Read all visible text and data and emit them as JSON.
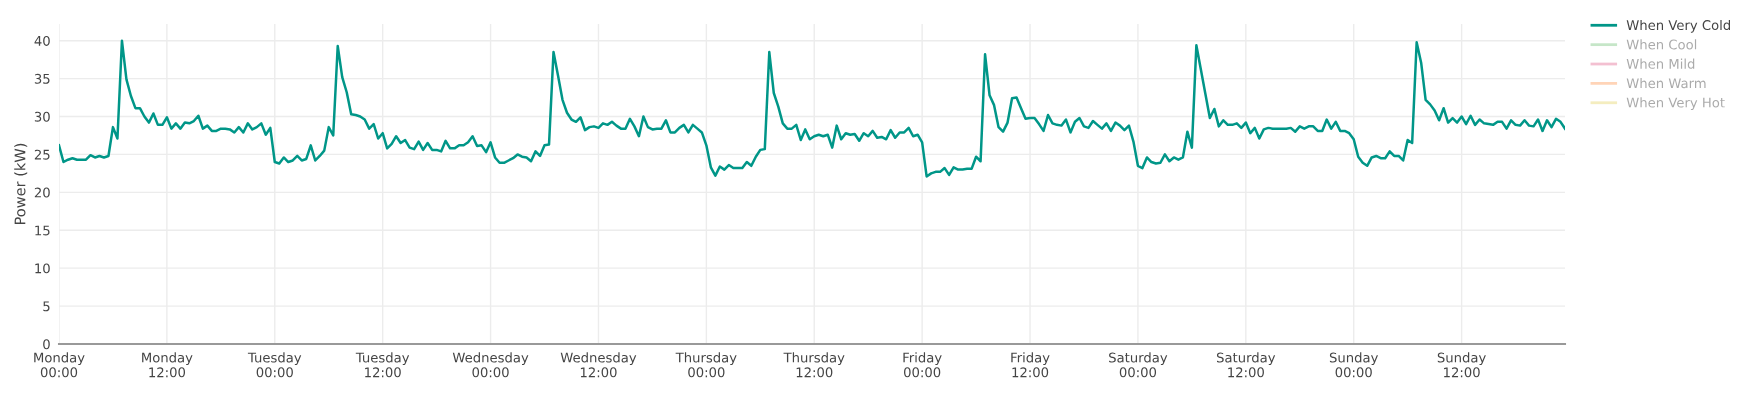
{
  "chart_data": {
    "type": "line",
    "ylabel": "Power (kW)",
    "ylim": [
      0,
      42.2
    ],
    "yticks": [
      0,
      5,
      10,
      15,
      20,
      25,
      30,
      35,
      40
    ],
    "categories": [
      "Monday\n00:00",
      null,
      null,
      null,
      null,
      null,
      null,
      null,
      null,
      null,
      null,
      null,
      null,
      null,
      null,
      null,
      null,
      null,
      null,
      null,
      null,
      null,
      null,
      null,
      "Monday\n12:00",
      null,
      null,
      null,
      null,
      null,
      null,
      null,
      null,
      null,
      null,
      null,
      null,
      null,
      null,
      null,
      null,
      null,
      null,
      null,
      null,
      null,
      null,
      null,
      "Tuesday\n00:00",
      null,
      null,
      null,
      null,
      null,
      null,
      null,
      null,
      null,
      null,
      null,
      null,
      null,
      null,
      null,
      null,
      null,
      null,
      null,
      null,
      null,
      null,
      null,
      "Tuesday\n12:00",
      null,
      null,
      null,
      null,
      null,
      null,
      null,
      null,
      null,
      null,
      null,
      null,
      null,
      null,
      null,
      null,
      null,
      null,
      null,
      null,
      null,
      null,
      null,
      "Wednesday\n00:00",
      null,
      null,
      null,
      null,
      null,
      null,
      null,
      null,
      null,
      null,
      null,
      null,
      null,
      null,
      null,
      null,
      null,
      null,
      null,
      null,
      null,
      null,
      null,
      "Wednesday\n12:00",
      null,
      null,
      null,
      null,
      null,
      null,
      null,
      null,
      null,
      null,
      null,
      null,
      null,
      null,
      null,
      null,
      null,
      null,
      null,
      null,
      null,
      null,
      null,
      "Thursday\n00:00",
      null,
      null,
      null,
      null,
      null,
      null,
      null,
      null,
      null,
      null,
      null,
      null,
      null,
      null,
      null,
      null,
      null,
      null,
      null,
      null,
      null,
      null,
      null,
      "Thursday\n12:00",
      null,
      null,
      null,
      null,
      null,
      null,
      null,
      null,
      null,
      null,
      null,
      null,
      null,
      null,
      null,
      null,
      null,
      null,
      null,
      null,
      null,
      null,
      null,
      "Friday\n00:00",
      null,
      null,
      null,
      null,
      null,
      null,
      null,
      null,
      null,
      null,
      null,
      null,
      null,
      null,
      null,
      null,
      null,
      null,
      null,
      null,
      null,
      null,
      null,
      "Friday\n12:00",
      null,
      null,
      null,
      null,
      null,
      null,
      null,
      null,
      null,
      null,
      null,
      null,
      null,
      null,
      null,
      null,
      null,
      null,
      null,
      null,
      null,
      null,
      null,
      "Saturday\n00:00",
      null,
      null,
      null,
      null,
      null,
      null,
      null,
      null,
      null,
      null,
      null,
      null,
      null,
      null,
      null,
      null,
      null,
      null,
      null,
      null,
      null,
      null,
      null,
      "Saturday\n12:00",
      null,
      null,
      null,
      null,
      null,
      null,
      null,
      null,
      null,
      null,
      null,
      null,
      null,
      null,
      null,
      null,
      null,
      null,
      null,
      null,
      null,
      null,
      null,
      "Sunday\n00:00",
      null,
      null,
      null,
      null,
      null,
      null,
      null,
      null,
      null,
      null,
      null,
      null,
      null,
      null,
      null,
      null,
      null,
      null,
      null,
      null,
      null,
      null,
      null,
      "Sunday\n12:00",
      null,
      null,
      null,
      null,
      null,
      null,
      null,
      null,
      null,
      null,
      null,
      null,
      null,
      null,
      null,
      null,
      null,
      null,
      null,
      null,
      null,
      null,
      null
    ],
    "grid": true,
    "legend": "top right",
    "line_style": "solid",
    "marker": "none",
    "series": [
      {
        "name": "When Very Cold",
        "color": "#009688",
        "values": [
          26.2,
          24.0,
          24.3,
          24.5,
          24.3,
          24.3,
          24.3,
          24.9,
          24.6,
          24.8,
          24.6,
          24.8,
          28.6,
          27.1,
          40.0,
          34.9,
          32.7,
          31.1,
          31.1,
          30.0,
          29.2,
          30.4,
          28.9,
          28.9,
          29.9,
          28.4,
          29.1,
          28.4,
          29.2,
          29.1,
          29.4,
          30.1,
          28.4,
          28.8,
          28.1,
          28.1,
          28.4,
          28.4,
          28.3,
          27.9,
          28.6,
          27.9,
          29.1,
          28.3,
          28.6,
          29.1,
          27.6,
          28.5,
          24.0,
          23.8,
          24.6,
          24.0,
          24.2,
          24.8,
          24.2,
          24.4,
          26.2,
          24.2,
          24.8,
          25.5,
          28.6,
          27.5,
          39.3,
          35.2,
          33.2,
          30.3,
          30.2,
          30.0,
          29.6,
          28.4,
          29.0,
          27.1,
          27.8,
          25.8,
          26.4,
          27.4,
          26.5,
          26.9,
          25.9,
          25.7,
          26.7,
          25.6,
          26.5,
          25.6,
          25.6,
          25.4,
          26.8,
          25.8,
          25.8,
          26.2,
          26.2,
          26.6,
          27.4,
          26.1,
          26.2,
          25.3,
          26.6,
          24.6,
          23.9,
          23.9,
          24.2,
          24.5,
          25.0,
          24.7,
          24.6,
          24.1,
          25.4,
          24.8,
          26.2,
          26.3,
          38.5,
          35.4,
          32.2,
          30.5,
          29.6,
          29.3,
          29.9,
          28.2,
          28.6,
          28.7,
          28.5,
          29.1,
          28.9,
          29.3,
          28.8,
          28.4,
          28.4,
          29.7,
          28.7,
          27.4,
          30.0,
          28.6,
          28.3,
          28.4,
          28.4,
          29.5,
          27.9,
          27.9,
          28.5,
          28.9,
          27.9,
          28.9,
          28.4,
          27.9,
          26.2,
          23.3,
          22.2,
          23.4,
          23.0,
          23.6,
          23.2,
          23.2,
          23.2,
          24.0,
          23.5,
          24.7,
          25.6,
          25.7,
          38.5,
          33.1,
          31.3,
          29.1,
          28.4,
          28.4,
          28.9,
          26.9,
          28.3,
          27.0,
          27.4,
          27.6,
          27.4,
          27.6,
          25.9,
          28.8,
          27.0,
          27.8,
          27.6,
          27.7,
          26.8,
          27.8,
          27.4,
          28.1,
          27.2,
          27.3,
          27.0,
          28.2,
          27.2,
          27.9,
          27.9,
          28.5,
          27.4,
          27.6,
          26.6,
          22.1,
          22.5,
          22.7,
          22.7,
          23.2,
          22.3,
          23.3,
          23.0,
          23.0,
          23.1,
          23.1,
          24.7,
          24.1,
          38.2,
          32.8,
          31.5,
          28.6,
          28.0,
          29.2,
          32.4,
          32.5,
          31.1,
          29.7,
          29.8,
          29.8,
          29.0,
          28.1,
          30.2,
          29.1,
          28.9,
          28.8,
          29.6,
          27.9,
          29.3,
          29.8,
          28.7,
          28.5,
          29.4,
          28.9,
          28.4,
          29.1,
          28.1,
          29.2,
          28.8,
          28.2,
          28.8,
          26.7,
          23.5,
          23.2,
          24.6,
          24.0,
          23.8,
          23.9,
          25.0,
          24.1,
          24.6,
          24.3,
          24.6,
          28.0,
          25.9,
          39.4,
          36.2,
          33.0,
          29.8,
          31.0,
          28.7,
          29.5,
          28.9,
          28.9,
          29.1,
          28.5,
          29.2,
          27.8,
          28.5,
          27.1,
          28.3,
          28.5,
          28.4,
          28.4,
          28.4,
          28.4,
          28.5,
          28.0,
          28.7,
          28.4,
          28.7,
          28.7,
          28.1,
          28.1,
          29.6,
          28.4,
          29.3,
          28.1,
          28.1,
          27.8,
          27.0,
          24.7,
          23.9,
          23.5,
          24.6,
          24.8,
          24.5,
          24.5,
          25.4,
          24.8,
          24.8,
          24.2,
          26.9,
          26.5,
          39.8,
          37.1,
          32.2,
          31.6,
          30.8,
          29.5,
          31.1,
          29.2,
          29.8,
          29.2,
          30.0,
          29.0,
          30.1,
          28.9,
          29.6,
          29.1,
          29.0,
          28.9,
          29.3,
          29.3,
          28.4,
          29.5,
          28.9,
          28.8,
          29.5,
          28.8,
          28.7,
          29.6,
          28.1,
          29.5,
          28.6,
          29.7,
          29.3,
          28.4
        ]
      },
      {
        "name": "When Cool",
        "color": "#81c784",
        "values": [
          null,
          null,
          null,
          null,
          null,
          null,
          null,
          null,
          null,
          null,
          null,
          null,
          null,
          null,
          null,
          null,
          null,
          null,
          null,
          null,
          null,
          null,
          null,
          null,
          null,
          null,
          null,
          null,
          null,
          null,
          null,
          null,
          null,
          null,
          null,
          null,
          null,
          null,
          null,
          null,
          null,
          null,
          null,
          null,
          null,
          null,
          null,
          null,
          null,
          null,
          null,
          null,
          null,
          null,
          null,
          null,
          null,
          null,
          null,
          null,
          null,
          null,
          null,
          null,
          null,
          null,
          null,
          null,
          null,
          null,
          null,
          null,
          null,
          null,
          null,
          null,
          null,
          null,
          null,
          null,
          null,
          null,
          null,
          null,
          null,
          null,
          null,
          null,
          null,
          null,
          null,
          null,
          null,
          null,
          null,
          null,
          null,
          null,
          null,
          null,
          null,
          null,
          null,
          null,
          null,
          null,
          null,
          null,
          null,
          null,
          null,
          null,
          null,
          null,
          null,
          null,
          null,
          null,
          null,
          null,
          null,
          null,
          null,
          null,
          null,
          null,
          null,
          null,
          null,
          null,
          null,
          null,
          null,
          null,
          null,
          null,
          null,
          null,
          null,
          null,
          null,
          null,
          null,
          null,
          null,
          null,
          null,
          null,
          null,
          null,
          null,
          null,
          null,
          null,
          null,
          null,
          null,
          null,
          null,
          null,
          null,
          null,
          null,
          null,
          null,
          null,
          null,
          null,
          null,
          null,
          null,
          null,
          null,
          null,
          null,
          null,
          null,
          null,
          null,
          null,
          null,
          null,
          null,
          null,
          null,
          null,
          null,
          null,
          null,
          null,
          null,
          null,
          null,
          null,
          null,
          null,
          null,
          null,
          null,
          null,
          null,
          null,
          null,
          null,
          null,
          null,
          null,
          null,
          null,
          null,
          null,
          null,
          null,
          null,
          null,
          null,
          null,
          null,
          null,
          null,
          null,
          null,
          null,
          null,
          null,
          null,
          null,
          null,
          null,
          null,
          null,
          null,
          null,
          null,
          null,
          null,
          null,
          null,
          null,
          null,
          null,
          null,
          null,
          null,
          null,
          null,
          null,
          null,
          null,
          null,
          null,
          null,
          null,
          null,
          null,
          null,
          null,
          null,
          null,
          null,
          null,
          null,
          null,
          null,
          null,
          null,
          null,
          null,
          null,
          null,
          null,
          null,
          null,
          null,
          null,
          null,
          null,
          null,
          null,
          null,
          null,
          null,
          null,
          null,
          null,
          null,
          null,
          null,
          null,
          null,
          null,
          null,
          null,
          null,
          null,
          null,
          null,
          null,
          null,
          null,
          null,
          null,
          null,
          null,
          null,
          null,
          null,
          null,
          null,
          null,
          null,
          null,
          null,
          null,
          null,
          null,
          null,
          null,
          null,
          null,
          null,
          null,
          null,
          null,
          null,
          null,
          null,
          null,
          null,
          null,
          null,
          null,
          null,
          null,
          null,
          null
        ]
      },
      {
        "name": "When Mild",
        "color": "#e57399",
        "values": [
          null,
          null,
          null,
          null,
          null,
          null,
          null,
          null,
          null,
          null,
          null,
          null,
          null,
          null,
          null,
          null,
          null,
          null,
          null,
          null,
          null,
          null,
          null,
          null,
          null,
          null,
          null,
          null,
          null,
          null,
          null,
          null,
          null,
          null,
          null,
          null,
          null,
          null,
          null,
          null,
          null,
          null,
          null,
          null,
          null,
          null,
          null,
          null,
          null,
          null,
          null,
          null,
          null,
          null,
          null,
          null,
          null,
          null,
          null,
          null,
          null,
          null,
          null,
          null,
          null,
          null,
          null,
          null,
          null,
          null,
          null,
          null,
          null,
          null,
          null,
          null,
          null,
          null,
          null,
          null,
          null,
          null,
          null,
          null,
          null,
          null,
          null,
          null,
          null,
          null,
          null,
          null,
          null,
          null,
          null,
          null,
          null,
          null,
          null,
          null,
          null,
          null,
          null,
          null,
          null,
          null,
          null,
          null,
          null,
          null,
          null,
          null,
          null,
          null,
          null,
          null,
          null,
          null,
          null,
          null,
          null,
          null,
          null,
          null,
          null,
          null,
          null,
          null,
          null,
          null,
          null,
          null,
          null,
          null,
          null,
          null,
          null,
          null,
          null,
          null,
          null,
          null,
          null,
          null,
          null,
          null,
          null,
          null,
          null,
          null,
          null,
          null,
          null,
          null,
          null,
          null,
          null,
          null,
          null,
          null,
          null,
          null,
          null,
          null,
          null,
          null,
          null,
          null,
          null,
          null,
          null,
          null,
          null,
          null,
          null,
          null,
          null,
          null,
          null,
          null,
          null,
          null,
          null,
          null,
          null,
          null,
          null,
          null,
          null,
          null,
          null,
          null,
          null,
          null,
          null,
          null,
          null,
          null,
          null,
          null,
          null,
          null,
          null,
          null,
          null,
          null,
          null,
          null,
          null,
          null,
          null,
          null,
          null,
          null,
          null,
          null,
          null,
          null,
          null,
          null,
          null,
          null,
          null,
          null,
          null,
          null,
          null,
          null,
          null,
          null,
          null,
          null,
          null,
          null,
          null,
          null,
          null,
          null,
          null,
          null,
          null,
          null,
          null,
          null,
          null,
          null,
          null,
          null,
          null,
          null,
          null,
          null,
          null,
          null,
          null,
          null,
          null,
          null,
          null,
          null,
          null,
          null,
          null,
          null,
          null,
          null,
          null,
          null,
          null,
          null,
          null,
          null,
          null,
          null,
          null,
          null,
          null,
          null,
          null,
          null,
          null,
          null,
          null,
          null,
          null,
          null,
          null,
          null,
          null,
          null,
          null,
          null,
          null,
          null,
          null,
          null,
          null,
          null,
          null,
          null,
          null,
          null,
          null,
          null,
          null,
          null,
          null,
          null,
          null,
          null,
          null,
          null,
          null,
          null,
          null,
          null,
          null,
          null,
          null,
          null,
          null,
          null,
          null,
          null,
          null,
          null,
          null,
          null,
          null,
          null,
          null,
          null,
          null,
          null,
          null,
          null
        ]
      },
      {
        "name": "When Warm",
        "color": "#ffa060",
        "values": [
          null,
          null,
          null,
          null,
          null,
          null,
          null,
          null,
          null,
          null,
          null,
          null,
          null,
          null,
          null,
          null,
          null,
          null,
          null,
          null,
          null,
          null,
          null,
          null,
          null,
          null,
          null,
          null,
          null,
          null,
          null,
          null,
          null,
          null,
          null,
          null,
          null,
          null,
          null,
          null,
          null,
          null,
          null,
          null,
          null,
          null,
          null,
          null,
          null,
          null,
          null,
          null,
          null,
          null,
          null,
          null,
          null,
          null,
          null,
          null,
          null,
          null,
          null,
          null,
          null,
          null,
          null,
          null,
          null,
          null,
          null,
          null,
          null,
          null,
          null,
          null,
          null,
          null,
          null,
          null,
          null,
          null,
          null,
          null,
          null,
          null,
          null,
          null,
          null,
          null,
          null,
          null,
          null,
          null,
          null,
          null,
          null,
          null,
          null,
          null,
          null,
          null,
          null,
          null,
          null,
          null,
          null,
          null,
          null,
          null,
          null,
          null,
          null,
          null,
          null,
          null,
          null,
          null,
          null,
          null,
          null,
          null,
          null,
          null,
          null,
          null,
          null,
          null,
          null,
          null,
          null,
          null,
          null,
          null,
          null,
          null,
          null,
          null,
          null,
          null,
          null,
          null,
          null,
          null,
          null,
          null,
          null,
          null,
          null,
          null,
          null,
          null,
          null,
          null,
          null,
          null,
          null,
          null,
          null,
          null,
          null,
          null,
          null,
          null,
          null,
          null,
          null,
          null,
          null,
          null,
          null,
          null,
          null,
          null,
          null,
          null,
          null,
          null,
          null,
          null,
          null,
          null,
          null,
          null,
          null,
          null,
          null,
          null,
          null,
          null,
          null,
          null,
          null,
          null,
          null,
          null,
          null,
          null,
          null,
          null,
          null,
          null,
          null,
          null,
          null,
          null,
          null,
          null,
          null,
          null,
          null,
          null,
          null,
          null,
          null,
          null,
          null,
          null,
          null,
          null,
          null,
          null,
          null,
          null,
          null,
          null,
          null,
          null,
          null,
          null,
          null,
          null,
          null,
          null,
          null,
          null,
          null,
          null,
          null,
          null,
          null,
          null,
          null,
          null,
          null,
          null,
          null,
          null,
          null,
          null,
          null,
          null,
          null,
          null,
          null,
          null,
          null,
          null,
          null,
          null,
          null,
          null,
          null,
          null,
          null,
          null,
          null,
          null,
          null,
          null,
          null,
          null,
          null,
          null,
          null,
          null,
          null,
          null,
          null,
          null,
          null,
          null,
          null,
          null,
          null,
          null,
          null,
          null,
          null,
          null,
          null,
          null,
          null,
          null,
          null,
          null,
          null,
          null,
          null,
          null,
          null,
          null,
          null,
          null,
          null,
          null,
          null,
          null,
          null,
          null,
          null,
          null,
          null,
          null,
          null,
          null,
          null,
          null,
          null,
          null,
          null,
          null,
          null,
          null,
          null,
          null,
          null,
          null,
          null,
          null,
          null,
          null,
          null,
          null,
          null,
          null
        ]
      },
      {
        "name": "When Very Hot",
        "color": "#e6d870",
        "values": [
          null,
          null,
          null,
          null,
          null,
          null,
          null,
          null,
          null,
          null,
          null,
          null,
          null,
          null,
          null,
          null,
          null,
          null,
          null,
          null,
          null,
          null,
          null,
          null,
          null,
          null,
          null,
          null,
          null,
          null,
          null,
          null,
          null,
          null,
          null,
          null,
          null,
          null,
          null,
          null,
          null,
          null,
          null,
          null,
          null,
          null,
          null,
          null,
          null,
          null,
          null,
          null,
          null,
          null,
          null,
          null,
          null,
          null,
          null,
          null,
          null,
          null,
          null,
          null,
          null,
          null,
          null,
          null,
          null,
          null,
          null,
          null,
          null,
          null,
          null,
          null,
          null,
          null,
          null,
          null,
          null,
          null,
          null,
          null,
          null,
          null,
          null,
          null,
          null,
          null,
          null,
          null,
          null,
          null,
          null,
          null,
          null,
          null,
          null,
          null,
          null,
          null,
          null,
          null,
          null,
          null,
          null,
          null,
          null,
          null,
          null,
          null,
          null,
          null,
          null,
          null,
          null,
          null,
          null,
          null,
          null,
          null,
          null,
          null,
          null,
          null,
          null,
          null,
          null,
          null,
          null,
          null,
          null,
          null,
          null,
          null,
          null,
          null,
          null,
          null,
          null,
          null,
          null,
          null,
          null,
          null,
          null,
          null,
          null,
          null,
          null,
          null,
          null,
          null,
          null,
          null,
          null,
          null,
          null,
          null,
          null,
          null,
          null,
          null,
          null,
          null,
          null,
          null,
          null,
          null,
          null,
          null,
          null,
          null,
          null,
          null,
          null,
          null,
          null,
          null,
          null,
          null,
          null,
          null,
          null,
          null,
          null,
          null,
          null,
          null,
          null,
          null,
          null,
          null,
          null,
          null,
          null,
          null,
          null,
          null,
          null,
          null,
          null,
          null,
          null,
          null,
          null,
          null,
          null,
          null,
          null,
          null,
          null,
          null,
          null,
          null,
          null,
          null,
          null,
          null,
          null,
          null,
          null,
          null,
          null,
          null,
          null,
          null,
          null,
          null,
          null,
          null,
          null,
          null,
          null,
          null,
          null,
          null,
          null,
          null,
          null,
          null,
          null,
          null,
          null,
          null,
          null,
          null,
          null,
          null,
          null,
          null,
          null,
          null,
          null,
          null,
          null,
          null,
          null,
          null,
          null,
          null,
          null,
          null,
          null,
          null,
          null,
          null,
          null,
          null,
          null,
          null,
          null,
          null,
          null,
          null,
          null,
          null,
          null,
          null,
          null,
          null,
          null,
          null,
          null,
          null,
          null,
          null,
          null,
          null,
          null,
          null,
          null,
          null,
          null,
          null,
          null,
          null,
          null,
          null,
          null,
          null,
          null,
          null,
          null,
          null,
          null,
          null,
          null,
          null,
          null,
          null,
          null,
          null,
          null,
          null,
          null,
          null,
          null,
          null,
          null,
          null,
          null,
          null,
          null,
          null,
          null,
          null,
          null,
          null,
          null,
          null,
          null,
          null,
          null,
          null
        ]
      }
    ]
  }
}
